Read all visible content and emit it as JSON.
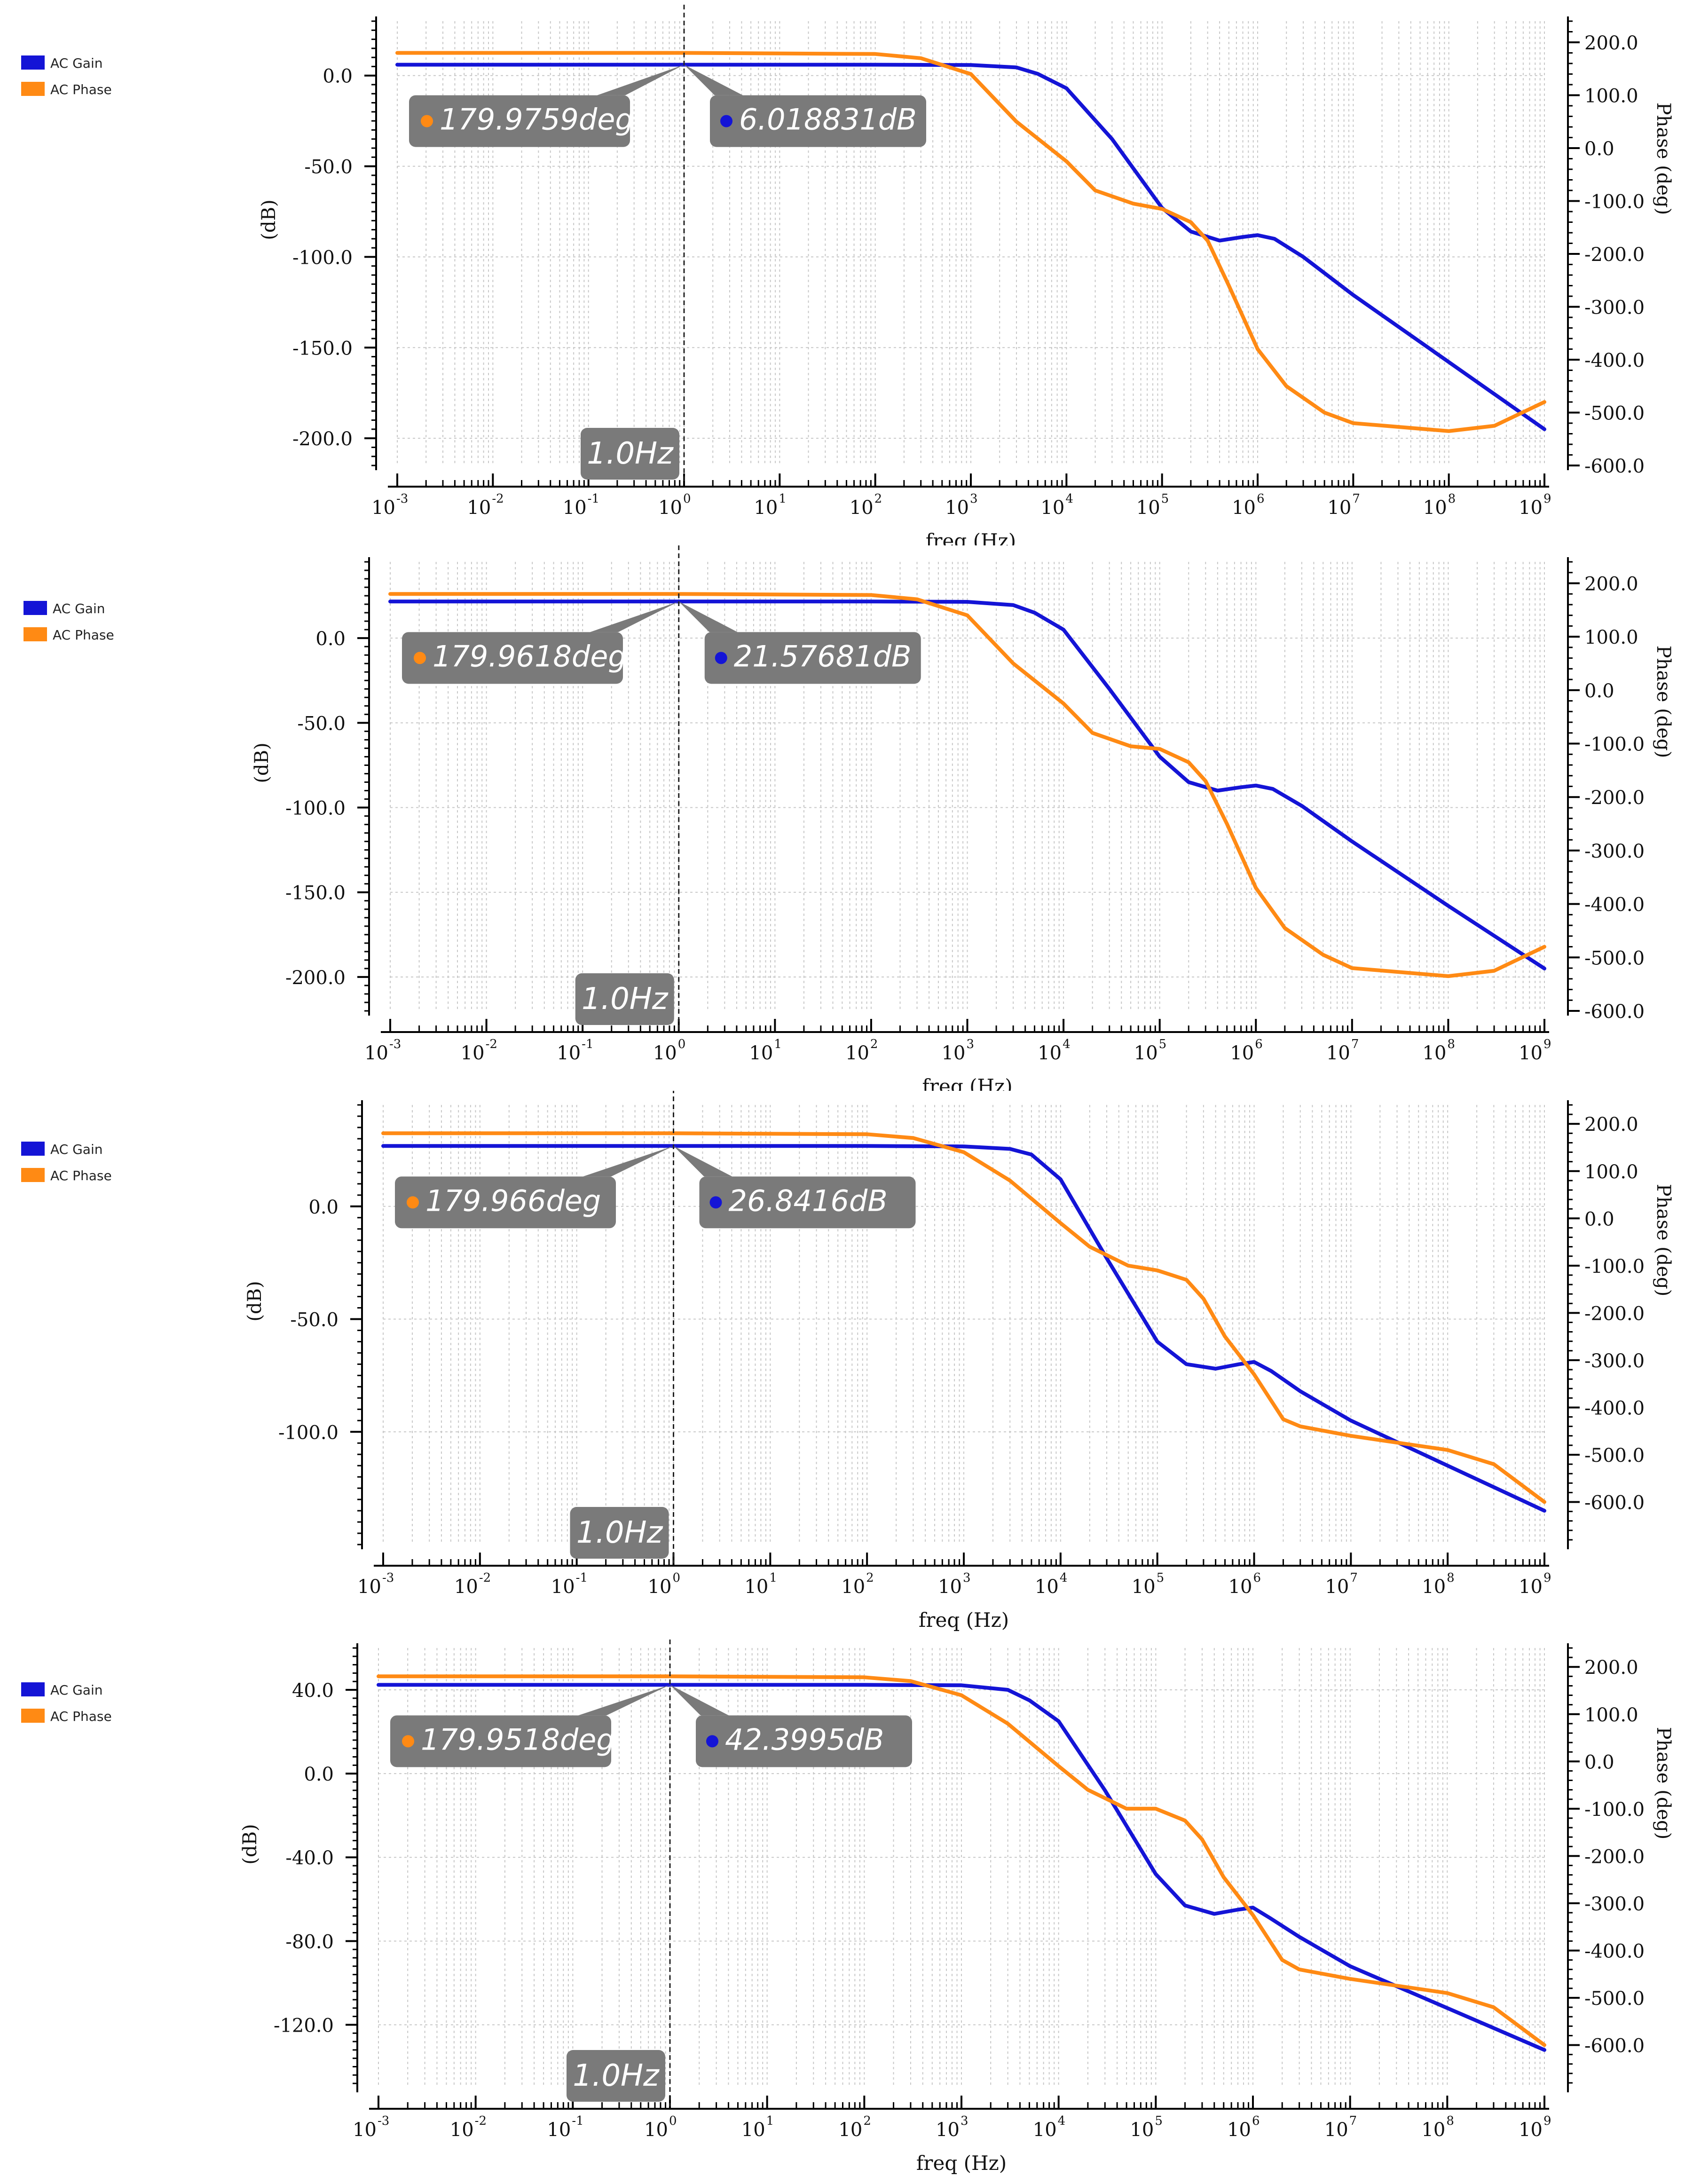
{
  "colors": {
    "gain": "#1414d6",
    "phase": "#ff8a14",
    "marker_box": "#7a7a7a",
    "marker_text": "#ffffff",
    "axis": "#000000",
    "grid": "#c8c8c8"
  },
  "legend": {
    "gain_label": "AC Gain",
    "phase_label": "AC Phase"
  },
  "chart_data": [
    {
      "type": "line",
      "xlabel": "freq (Hz)",
      "ylabel": "(dB)",
      "y2label": "Phase (deg)",
      "xscale": "log",
      "xlim": [
        0.001,
        1000000000
      ],
      "x_ticks": [
        "10-3",
        "10-2",
        "10-1",
        "100",
        "101",
        "102",
        "103",
        "104",
        "105",
        "106",
        "107",
        "108",
        "109"
      ],
      "ylim": [
        -215,
        30
      ],
      "y_ticks": [
        "0.0",
        "-50.0",
        "-100.0",
        "-150.0",
        "-200.0"
      ],
      "y_tick_values": [
        0,
        -50,
        -100,
        -150,
        -200
      ],
      "y2lim": [
        -600,
        240
      ],
      "y2_ticks": [
        "200.0",
        "100.0",
        "0.0",
        "-100.0",
        "-200.0",
        "-300.0",
        "-400.0",
        "-500.0",
        "-600.0"
      ],
      "y2_tick_values": [
        200,
        100,
        0,
        -100,
        -200,
        -300,
        -400,
        -500,
        -600
      ],
      "cursor": {
        "x": 1.0,
        "label": "1.0Hz",
        "phase_label": "179.9759deg",
        "gain_label": "6.018831dB"
      },
      "series": [
        {
          "name": "AC Gain",
          "axis": "left",
          "x": [
            0.001,
            1,
            100,
            1000,
            3000,
            5000,
            10000,
            30000,
            100000,
            200000,
            400000,
            700000,
            1000000,
            1500000,
            3000000,
            10000000,
            100000000,
            1000000000
          ],
          "y": [
            6.0,
            6.0,
            6.0,
            5.8,
            4.5,
            1.0,
            -7,
            -35,
            -73,
            -86,
            -91,
            -89,
            -88,
            -90,
            -100,
            -121,
            -158,
            -195
          ]
        },
        {
          "name": "AC Phase",
          "axis": "right",
          "x": [
            0.001,
            1,
            100,
            300,
            1000,
            3000,
            10000,
            20000,
            50000,
            100000,
            200000,
            300000,
            500000,
            1000000,
            2000000,
            5000000,
            10000000,
            100000000,
            300000000,
            1000000000
          ],
          "y": [
            180,
            180,
            178,
            170,
            140,
            50,
            -25,
            -80,
            -105,
            -115,
            -140,
            -175,
            -260,
            -380,
            -450,
            -500,
            -520,
            -535,
            -525,
            -480
          ]
        }
      ]
    },
    {
      "type": "line",
      "xlabel": "freq (Hz)",
      "ylabel": "(dB)",
      "y2label": "Phase (deg)",
      "xscale": "log",
      "xlim": [
        0.001,
        1000000000
      ],
      "x_ticks": [
        "10-3",
        "10-2",
        "10-1",
        "100",
        "101",
        "102",
        "103",
        "104",
        "105",
        "106",
        "107",
        "108",
        "109"
      ],
      "ylim": [
        -220,
        45
      ],
      "y_ticks": [
        "0.0",
        "-50.0",
        "-100.0",
        "-150.0",
        "-200.0"
      ],
      "y_tick_values": [
        0,
        -50,
        -100,
        -150,
        -200
      ],
      "y2lim": [
        -600,
        240
      ],
      "y2_ticks": [
        "200.0",
        "100.0",
        "0.0",
        "-100.0",
        "-200.0",
        "-300.0",
        "-400.0",
        "-500.0",
        "-600.0"
      ],
      "y2_tick_values": [
        200,
        100,
        0,
        -100,
        -200,
        -300,
        -400,
        -500,
        -600
      ],
      "cursor": {
        "x": 1.0,
        "label": "1.0Hz",
        "phase_label": "179.9618deg",
        "gain_label": "21.57681dB"
      },
      "series": [
        {
          "name": "AC Gain",
          "axis": "left",
          "x": [
            0.001,
            1,
            100,
            1000,
            3000,
            5000,
            10000,
            30000,
            100000,
            200000,
            400000,
            700000,
            1000000,
            1500000,
            3000000,
            10000000,
            100000000,
            1000000000
          ],
          "y": [
            21.6,
            21.6,
            21.6,
            21.4,
            19.5,
            15,
            5,
            -30,
            -70,
            -85,
            -90,
            -88,
            -87,
            -89,
            -99,
            -120,
            -158,
            -195
          ]
        },
        {
          "name": "AC Phase",
          "axis": "right",
          "x": [
            0.001,
            1,
            100,
            300,
            1000,
            3000,
            10000,
            20000,
            50000,
            100000,
            200000,
            300000,
            500000,
            1000000,
            2000000,
            5000000,
            10000000,
            100000000,
            300000000,
            1000000000
          ],
          "y": [
            180,
            180,
            178,
            170,
            140,
            50,
            -25,
            -80,
            -105,
            -110,
            -135,
            -170,
            -250,
            -370,
            -445,
            -495,
            -520,
            -535,
            -525,
            -480
          ]
        }
      ]
    },
    {
      "type": "line",
      "xlabel": "freq (Hz)",
      "ylabel": "(dB)",
      "y2label": "Phase (deg)",
      "xscale": "log",
      "xlim": [
        0.001,
        1000000000
      ],
      "x_ticks": [
        "10-3",
        "10-2",
        "10-1",
        "100",
        "101",
        "102",
        "103",
        "104",
        "105",
        "106",
        "107",
        "108",
        "109"
      ],
      "ylim": [
        -150,
        45
      ],
      "y_ticks": [
        "0.0",
        "-50.0",
        "-100.0"
      ],
      "y_tick_values": [
        0,
        -50,
        -100
      ],
      "y2lim": [
        -690,
        240
      ],
      "y2_ticks": [
        "200.0",
        "100.0",
        "0.0",
        "-100.0",
        "-200.0",
        "-300.0",
        "-400.0",
        "-500.0",
        "-600.0"
      ],
      "y2_tick_values": [
        200,
        100,
        0,
        -100,
        -200,
        -300,
        -400,
        -500,
        -600
      ],
      "cursor": {
        "x": 1.0,
        "label": "1.0Hz",
        "phase_label": "179.966deg",
        "gain_label": "26.8416dB"
      },
      "series": [
        {
          "name": "AC Gain",
          "axis": "left",
          "x": [
            0.001,
            1,
            100,
            1000,
            3000,
            5000,
            10000,
            30000,
            100000,
            200000,
            400000,
            700000,
            1000000,
            1500000,
            3000000,
            10000000,
            100000000,
            1000000000
          ],
          "y": [
            26.8,
            26.8,
            26.8,
            26.6,
            25.5,
            23,
            12,
            -23,
            -60,
            -70,
            -72,
            -70,
            -69,
            -73,
            -82,
            -95,
            -115,
            -135
          ]
        },
        {
          "name": "AC Phase",
          "axis": "right",
          "x": [
            0.001,
            1,
            100,
            300,
            1000,
            3000,
            10000,
            20000,
            50000,
            100000,
            200000,
            300000,
            500000,
            1000000,
            2000000,
            3000000,
            10000000,
            100000000,
            300000000,
            1000000000
          ],
          "y": [
            180,
            180,
            178,
            170,
            140,
            80,
            -10,
            -60,
            -100,
            -110,
            -130,
            -170,
            -250,
            -330,
            -425,
            -440,
            -460,
            -490,
            -520,
            -600
          ]
        }
      ]
    },
    {
      "type": "line",
      "xlabel": "freq (Hz)",
      "ylabel": "(dB)",
      "y2label": "Phase (deg)",
      "xscale": "log",
      "xlim": [
        0.001,
        1000000000
      ],
      "x_ticks": [
        "10-3",
        "10-2",
        "10-1",
        "100",
        "101",
        "102",
        "103",
        "104",
        "105",
        "106",
        "107",
        "108",
        "109"
      ],
      "ylim": [
        -150,
        60
      ],
      "y_ticks": [
        "40.0",
        "0.0",
        "-40.0",
        "-80.0",
        "-120.0"
      ],
      "y_tick_values": [
        40,
        0,
        -40,
        -80,
        -120
      ],
      "y2lim": [
        -690,
        240
      ],
      "y2_ticks": [
        "200.0",
        "100.0",
        "0.0",
        "-100.0",
        "-200.0",
        "-300.0",
        "-400.0",
        "-500.0",
        "-600.0"
      ],
      "y2_tick_values": [
        200,
        100,
        0,
        -100,
        -200,
        -300,
        -400,
        -500,
        -600
      ],
      "cursor": {
        "x": 1.0,
        "label": "1.0Hz",
        "phase_label": "179.9518deg",
        "gain_label": "42.3995dB"
      },
      "series": [
        {
          "name": "AC Gain",
          "axis": "left",
          "x": [
            0.001,
            1,
            100,
            1000,
            3000,
            5000,
            10000,
            30000,
            100000,
            200000,
            400000,
            700000,
            1000000,
            1500000,
            3000000,
            10000000,
            100000000,
            1000000000
          ],
          "y": [
            42.4,
            42.4,
            42.4,
            42.2,
            40,
            35,
            25,
            -8,
            -48,
            -63,
            -67,
            -65,
            -64,
            -69,
            -78,
            -92,
            -112,
            -132
          ]
        },
        {
          "name": "AC Phase",
          "axis": "right",
          "x": [
            0.001,
            1,
            100,
            300,
            1000,
            3000,
            10000,
            20000,
            50000,
            100000,
            200000,
            300000,
            500000,
            1000000,
            2000000,
            3000000,
            10000000,
            100000000,
            300000000,
            1000000000
          ],
          "y": [
            180,
            180,
            178,
            170,
            140,
            80,
            -10,
            -60,
            -100,
            -100,
            -125,
            -165,
            -245,
            -325,
            -420,
            -440,
            -460,
            -490,
            -520,
            -600
          ]
        }
      ]
    }
  ]
}
